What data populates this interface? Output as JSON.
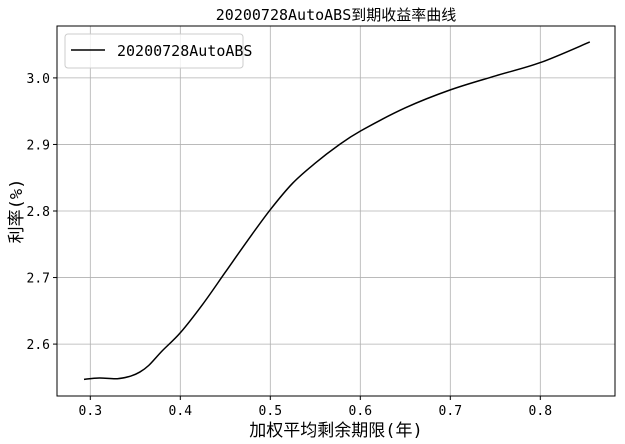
{
  "chart_data": {
    "type": "line",
    "title": "20200728AutoABS到期收益率曲线",
    "xlabel": "加权平均剩余期限(年)",
    "ylabel": "利率(%)",
    "xlim": [
      0.263,
      0.883
    ],
    "ylim": [
      2.522,
      3.078
    ],
    "xticks": [
      0.3,
      0.4,
      0.5,
      0.6,
      0.7,
      0.8
    ],
    "xtick_labels": [
      "0.3",
      "0.4",
      "0.5",
      "0.6",
      "0.7",
      "0.8"
    ],
    "yticks": [
      2.6,
      2.7,
      2.8,
      2.9,
      3.0
    ],
    "ytick_labels": [
      "2.6",
      "2.7",
      "2.8",
      "2.9",
      "3.0"
    ],
    "grid": true,
    "legend_position": "top-left",
    "series": [
      {
        "name": "20200728AutoABS",
        "color": "#000000",
        "x": [
          0.293,
          0.31,
          0.33,
          0.345,
          0.355,
          0.365,
          0.38,
          0.4,
          0.425,
          0.45,
          0.475,
          0.5,
          0.525,
          0.55,
          0.575,
          0.6,
          0.65,
          0.7,
          0.75,
          0.8,
          0.855
        ],
        "y": [
          2.547,
          2.549,
          2.548,
          2.552,
          2.558,
          2.568,
          2.59,
          2.617,
          2.66,
          2.708,
          2.756,
          2.802,
          2.842,
          2.872,
          2.898,
          2.92,
          2.955,
          2.982,
          3.003,
          3.023,
          3.054
        ]
      }
    ]
  }
}
